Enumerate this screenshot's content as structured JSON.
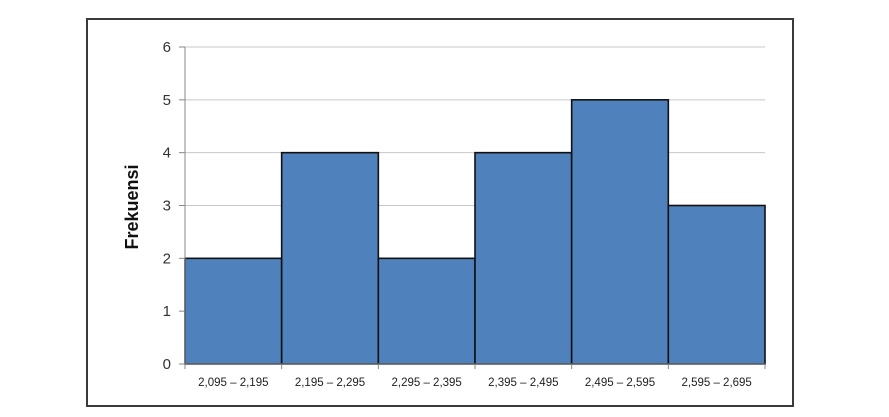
{
  "chart_data": {
    "type": "bar",
    "categories": [
      "2,095 – 2,195",
      "2,195 – 2,295",
      "2,295 – 2,395",
      "2,395 – 2,495",
      "2,495 – 2,595",
      "2,595 – 2,695"
    ],
    "values": [
      2,
      4,
      2,
      4,
      5,
      3
    ],
    "title": "",
    "xlabel": "",
    "ylabel": "Frekuensi",
    "ylim": [
      0,
      6
    ],
    "yticks": [
      "0",
      "1",
      "2",
      "3",
      "4",
      "5",
      "6"
    ],
    "grid": true,
    "bar_color": "#4f81bd",
    "bar_edge_color": "#111111"
  }
}
